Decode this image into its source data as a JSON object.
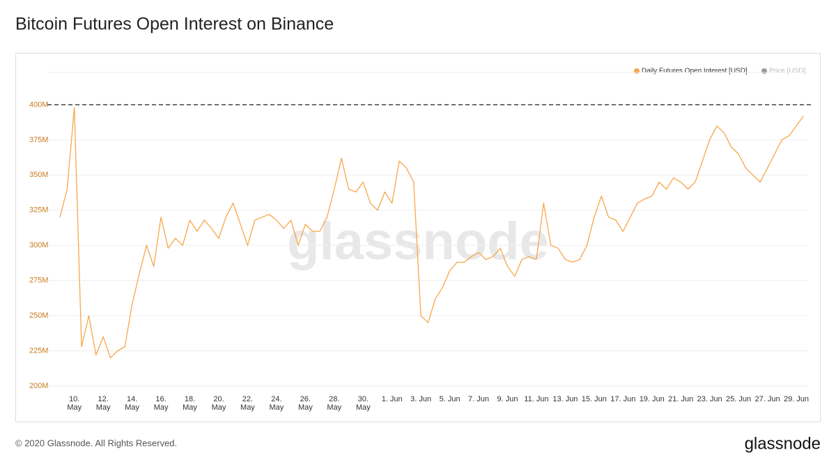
{
  "header": {
    "title": "Bitcoin Futures Open Interest on Binance"
  },
  "chart_data": {
    "type": "line",
    "categories": [
      null,
      null,
      "10. May",
      null,
      null,
      null,
      "12. May",
      null,
      null,
      null,
      "14. May",
      null,
      null,
      null,
      "16. May",
      null,
      null,
      null,
      "18. May",
      null,
      null,
      null,
      "20. May",
      null,
      null,
      null,
      "22. May",
      null,
      null,
      null,
      "24. May",
      null,
      null,
      null,
      "26. May",
      null,
      null,
      null,
      "28. May",
      null,
      null,
      null,
      "30. May",
      null,
      null,
      null,
      "1. Jun",
      null,
      null,
      null,
      "3. Jun",
      null,
      null,
      null,
      "5. Jun",
      null,
      null,
      null,
      "7. Jun",
      null,
      null,
      null,
      "9. Jun",
      null,
      null,
      null,
      "11. Jun",
      null,
      null,
      null,
      "13. Jun",
      null,
      null,
      null,
      "15. Jun",
      null,
      null,
      null,
      "17. Jun",
      null,
      null,
      null,
      "19. Jun",
      null,
      null,
      null,
      "21. Jun",
      null,
      null,
      null,
      "23. Jun",
      null,
      null,
      null,
      "25. Jun",
      null,
      null,
      null,
      "27. Jun",
      null,
      null,
      null,
      "29. Jun",
      null
    ],
    "series": [
      {
        "name": "Daily Futures Open Interest [USD]",
        "color": "#f7a64a",
        "values": [
          320,
          340,
          398,
          228,
          250,
          222,
          235,
          220,
          225,
          228,
          258,
          280,
          300,
          285,
          320,
          298,
          305,
          300,
          318,
          310,
          318,
          312,
          305,
          320,
          330,
          315,
          300,
          318,
          320,
          322,
          318,
          312,
          318,
          300,
          315,
          310,
          310,
          320,
          340,
          362,
          340,
          338,
          345,
          330,
          325,
          338,
          330,
          360,
          355,
          345,
          250,
          245,
          262,
          270,
          282,
          288,
          288,
          292,
          295,
          290,
          292,
          298,
          285,
          278,
          290,
          292,
          290,
          330,
          300,
          298,
          290,
          288,
          290,
          300,
          320,
          335,
          320,
          318,
          310,
          320,
          330,
          333,
          335,
          345,
          340,
          348,
          345,
          340,
          345,
          360,
          375,
          385,
          380,
          370,
          365,
          355,
          350,
          345,
          355,
          365,
          375,
          378,
          385,
          392
        ]
      }
    ],
    "inactive_legend": {
      "name": "Price [USD]",
      "color": "#999999"
    },
    "ylim": [
      197,
      423
    ],
    "yticks": [
      {
        "value": 200,
        "label": "200M"
      },
      {
        "value": 225,
        "label": "225M"
      },
      {
        "value": 250,
        "label": "250M"
      },
      {
        "value": 275,
        "label": "275M"
      },
      {
        "value": 300,
        "label": "300M"
      },
      {
        "value": 325,
        "label": "325M"
      },
      {
        "value": 350,
        "label": "350M"
      },
      {
        "value": 375,
        "label": "375M"
      },
      {
        "value": 400,
        "label": "400M"
      }
    ],
    "reference_line": 400,
    "grid": true,
    "watermark": "glassnode"
  },
  "footer": {
    "copyright": "© 2020 Glassnode. All Rights Reserved.",
    "logo": "glassnode"
  }
}
